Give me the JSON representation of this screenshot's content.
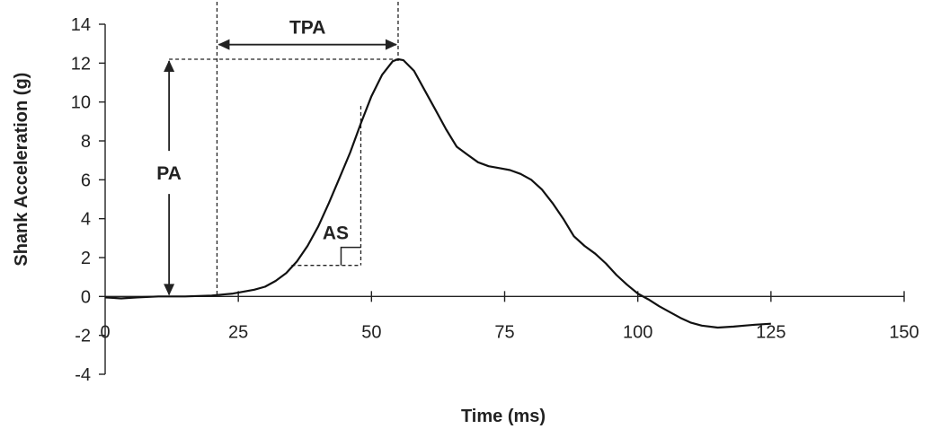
{
  "chart_data": {
    "type": "line",
    "xlabel": "Time (ms)",
    "ylabel": "Shank Acceleration (g)",
    "xlim": [
      0,
      150
    ],
    "ylim": [
      -4,
      14
    ],
    "xticks": [
      0,
      25,
      50,
      75,
      100,
      125,
      150
    ],
    "yticks": [
      -4,
      -2,
      0,
      2,
      4,
      6,
      8,
      10,
      12,
      14
    ],
    "grid": false,
    "series": [
      {
        "x": [
          0,
          3,
          6,
          10,
          15,
          20,
          22,
          24,
          26,
          28,
          30,
          32,
          34,
          36,
          38,
          40,
          42,
          44,
          46,
          48,
          50,
          52,
          54,
          55,
          56,
          58,
          60,
          62,
          64,
          66,
          68,
          70,
          72,
          74,
          76,
          78,
          80,
          82,
          84,
          86,
          88,
          90,
          92,
          94,
          96,
          98,
          100,
          102,
          104,
          106,
          108,
          110,
          112,
          115,
          118,
          120,
          122,
          125
        ],
        "y": [
          -0.05,
          -0.1,
          -0.05,
          0.0,
          0.0,
          0.05,
          0.1,
          0.15,
          0.25,
          0.35,
          0.5,
          0.8,
          1.2,
          1.8,
          2.6,
          3.6,
          4.8,
          6.1,
          7.4,
          8.9,
          10.3,
          11.4,
          12.1,
          12.2,
          12.15,
          11.6,
          10.6,
          9.6,
          8.6,
          7.7,
          7.3,
          6.9,
          6.7,
          6.6,
          6.5,
          6.3,
          6.0,
          5.5,
          4.8,
          4.0,
          3.1,
          2.6,
          2.2,
          1.7,
          1.1,
          0.6,
          0.15,
          -0.15,
          -0.5,
          -0.8,
          -1.1,
          -1.35,
          -1.5,
          -1.6,
          -1.55,
          -1.5,
          -1.45,
          -1.4
        ]
      }
    ],
    "annotations": [
      {
        "label": "TPA",
        "from_x": 21,
        "to_x": 55,
        "at_y": 13.6
      },
      {
        "label": "PA",
        "at_x": 12,
        "from_y": 0,
        "to_y": 12.2
      },
      {
        "label": "AS",
        "x_range": [
          35,
          48
        ],
        "y_range": [
          1.6,
          9.8
        ]
      }
    ]
  }
}
